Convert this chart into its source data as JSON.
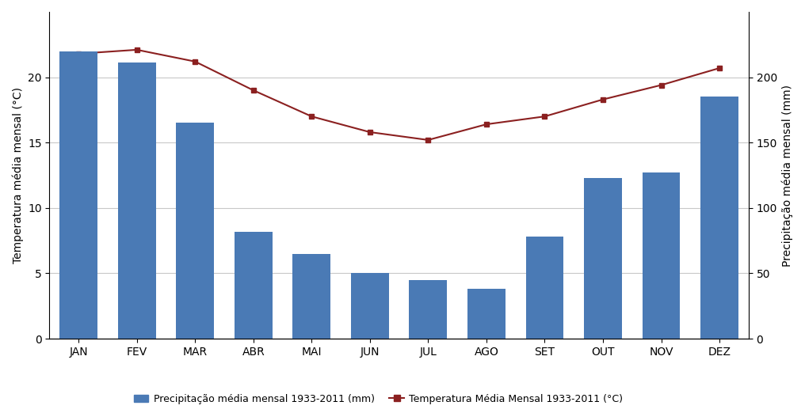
{
  "months": [
    "JAN",
    "FEV",
    "MAR",
    "ABR",
    "MAI",
    "JUN",
    "JUL",
    "AGO",
    "SET",
    "OUT",
    "NOV",
    "DEZ"
  ],
  "precipitation_mm": [
    220.0,
    211.0,
    165.0,
    82.0,
    65.0,
    50.0,
    45.0,
    38.0,
    78.0,
    123.0,
    127.0,
    185.0
  ],
  "temperature": [
    21.8,
    22.1,
    21.2,
    19.0,
    17.0,
    15.8,
    15.2,
    16.4,
    17.0,
    18.3,
    19.4,
    20.7
  ],
  "bar_color": "#4a7ab5",
  "line_color": "#8b2020",
  "ylabel_left": "Temperatura média mensal (°C)",
  "ylabel_right": "Precipitação média mensal (mm)",
  "ylim_left": [
    0,
    25
  ],
  "ylim_right": [
    0,
    250
  ],
  "yticks_left": [
    0,
    5,
    10,
    15,
    20
  ],
  "yticks_right": [
    0,
    50,
    100,
    150,
    200
  ],
  "legend_bar": "Precipitação média mensal 1933-2011 (mm)",
  "legend_line": "Temperatura Média Mensal 1933-2011 (°C)",
  "background_color": "#ffffff",
  "grid_color": "#c8c8c8",
  "bar_width": 0.65,
  "figsize": [
    10.16,
    5.22
  ],
  "dpi": 100
}
